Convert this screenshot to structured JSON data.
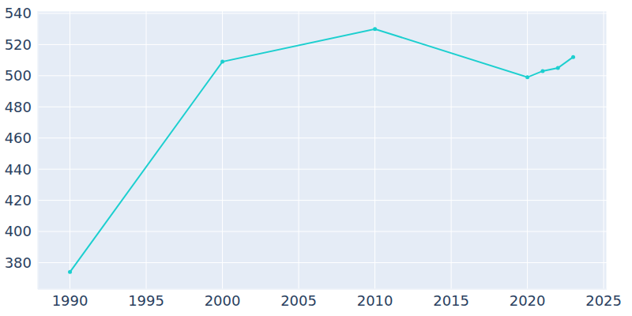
{
  "chart_data": {
    "type": "line",
    "x": [
      1990,
      2000,
      2010,
      2020,
      2021,
      2022,
      2023
    ],
    "values": [
      374,
      509,
      530,
      499,
      503,
      505,
      512
    ],
    "color": "#1ccfcf",
    "marker": "circle",
    "xlim": [
      1987.9,
      2025.2
    ],
    "ylim": [
      363,
      541.5
    ],
    "xticks": [
      1990,
      1995,
      2000,
      2005,
      2010,
      2015,
      2020,
      2025
    ],
    "yticks": [
      380,
      400,
      420,
      440,
      460,
      480,
      500,
      520,
      540
    ],
    "grid": true
  }
}
